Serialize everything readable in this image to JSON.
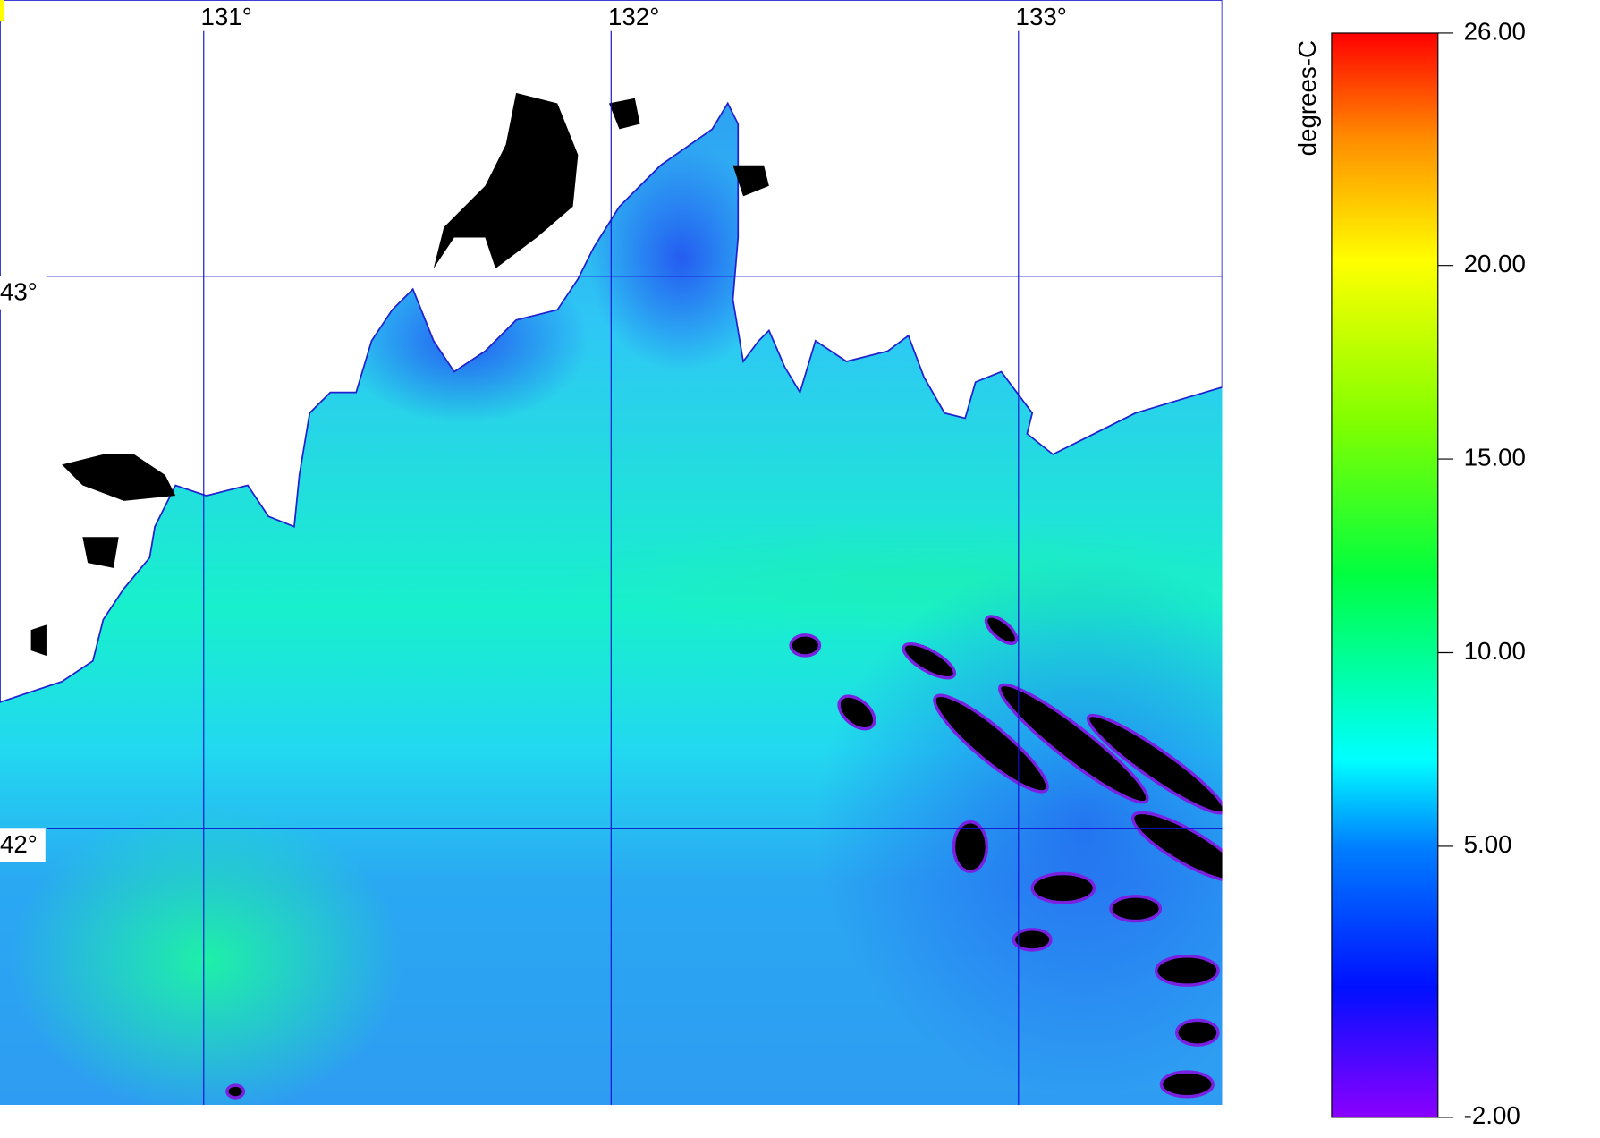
{
  "map": {
    "lonlim": [
      130.5,
      133.5
    ],
    "latlim": [
      41.5,
      43.5
    ],
    "lon_lines": [
      {
        "value": 131,
        "label": "131°"
      },
      {
        "value": 132,
        "label": "132°"
      },
      {
        "value": 133,
        "label": "133°"
      }
    ],
    "lat_lines": [
      {
        "value": 43,
        "label": "43°"
      },
      {
        "value": 42,
        "label": "42°"
      }
    ],
    "colorbar": {
      "label": "degrees-C",
      "lim": [
        -2,
        26
      ],
      "ticks": [
        {
          "value": 26,
          "label": "26.00"
        },
        {
          "value": 20,
          "label": "20.00"
        },
        {
          "value": 15,
          "label": "15.00"
        },
        {
          "value": 10,
          "label": "10.00"
        },
        {
          "value": 5,
          "label": "5.00"
        },
        {
          "value": -2,
          "label": "-2.00"
        }
      ]
    }
  }
}
